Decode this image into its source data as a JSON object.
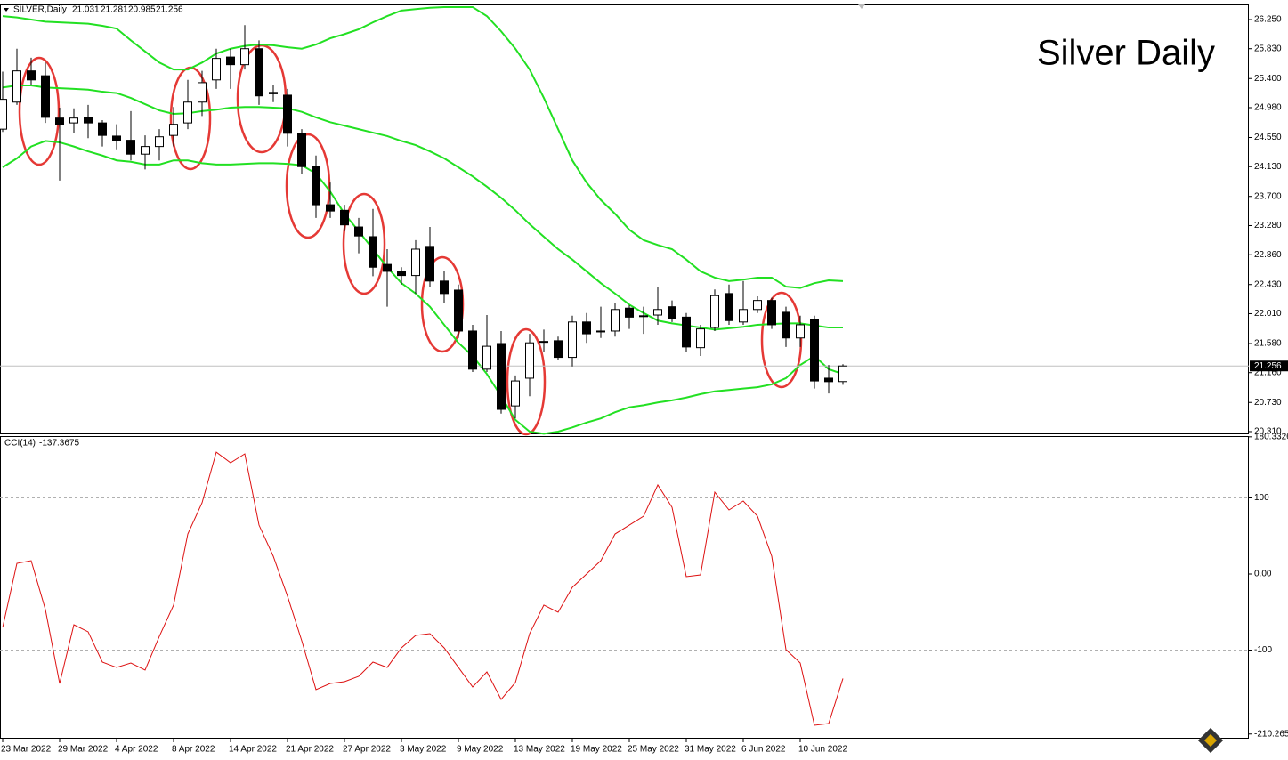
{
  "chart_data": [
    {
      "type": "candlestick",
      "title": "Silver Daily",
      "header": "SILVER,Daily",
      "categories": [
        "23 Mar 2022",
        null,
        null,
        null,
        "29 Mar 2022",
        null,
        null,
        null,
        "4 Apr 2022",
        null,
        null,
        null,
        "8 Apr 2022",
        null,
        null,
        null,
        "14 Apr 2022",
        null,
        null,
        null,
        "21 Apr 2022",
        null,
        null,
        null,
        "27 Apr 2022",
        null,
        null,
        null,
        "3 May 2022",
        null,
        null,
        null,
        "9 May 2022",
        null,
        null,
        null,
        "13 May 2022",
        null,
        null,
        null,
        "19 May 2022",
        null,
        null,
        null,
        "25 May 2022",
        null,
        null,
        null,
        "31 May 2022",
        null,
        null,
        null,
        "6 Jun 2022",
        null,
        null,
        null,
        "10 Jun 2022",
        null,
        null,
        null
      ],
      "open": [
        24.67,
        25.06,
        25.51,
        25.44,
        24.83,
        24.76,
        24.84,
        24.76,
        24.57,
        24.51,
        24.31,
        24.42,
        24.58,
        24.76,
        25.06,
        25.38,
        25.71,
        25.6,
        25.83,
        25.2,
        25.16,
        24.61,
        24.13,
        23.58,
        23.5,
        23.26,
        23.12,
        22.72,
        22.62,
        22.56,
        22.98,
        22.48,
        22.35,
        21.76,
        21.21,
        21.58,
        20.68,
        21.08,
        21.6,
        21.62,
        21.38,
        21.89,
        21.75,
        21.76,
        22.09,
        21.97,
        21.99,
        22.11,
        21.96,
        21.52,
        21.81,
        22.3,
        21.89,
        22.07,
        22.2,
        22.03,
        21.66,
        21.93,
        21.08,
        21.031
      ],
      "high": [
        25.5,
        25.83,
        25.7,
        25.63,
        24.98,
        24.97,
        25.02,
        24.8,
        24.74,
        24.93,
        24.58,
        24.67,
        24.99,
        25.38,
        25.51,
        25.83,
        25.83,
        26.17,
        25.95,
        25.31,
        25.25,
        24.67,
        24.29,
        23.9,
        23.58,
        23.39,
        23.52,
        22.94,
        22.68,
        23.07,
        23.26,
        22.62,
        22.43,
        21.85,
        21.99,
        21.76,
        21.12,
        21.72,
        21.78,
        21.68,
        21.98,
        22.02,
        22.11,
        22.17,
        22.13,
        22.11,
        22.4,
        22.2,
        22.02,
        21.85,
        22.36,
        22.43,
        22.48,
        22.26,
        22.24,
        22.11,
        21.98,
        21.98,
        21.27,
        21.281
      ],
      "low": [
        24.63,
        25.02,
        25.31,
        24.76,
        23.93,
        24.61,
        24.54,
        24.42,
        24.38,
        24.22,
        24.09,
        24.22,
        24.42,
        24.67,
        24.86,
        25.25,
        25.25,
        25.53,
        25.02,
        25.06,
        24.42,
        24.03,
        23.39,
        23.39,
        23.2,
        22.88,
        22.55,
        22.11,
        22.43,
        22.3,
        22.4,
        22.17,
        21.66,
        21.17,
        21.17,
        20.57,
        20.5,
        20.82,
        21.46,
        21.34,
        21.25,
        21.59,
        21.66,
        21.68,
        21.79,
        21.72,
        21.85,
        21.89,
        21.46,
        21.4,
        21.76,
        21.85,
        21.85,
        22.02,
        21.79,
        21.53,
        21.53,
        20.93,
        20.86,
        20.985
      ],
      "close": [
        25.1,
        25.51,
        25.38,
        24.84,
        24.74,
        24.83,
        24.76,
        24.58,
        24.51,
        24.31,
        24.42,
        24.56,
        24.74,
        25.06,
        25.34,
        25.69,
        25.6,
        25.83,
        25.15,
        25.18,
        24.61,
        24.13,
        23.58,
        23.49,
        23.29,
        23.13,
        22.68,
        22.62,
        22.56,
        22.94,
        22.48,
        22.3,
        21.76,
        21.21,
        21.54,
        20.63,
        21.04,
        21.59,
        21.61,
        21.38,
        21.89,
        21.72,
        21.76,
        22.07,
        21.96,
        21.98,
        22.07,
        21.94,
        21.53,
        21.79,
        22.27,
        21.91,
        22.07,
        22.2,
        21.85,
        21.66,
        21.85,
        21.04,
        21.03,
        21.256
      ],
      "up_color": "#ffffff",
      "down_color": "#000000",
      "lines": [
        {
          "color": "#22e022",
          "values": [
            26.3,
            26.28,
            26.25,
            26.22,
            26.21,
            26.2,
            26.19,
            26.16,
            26.12,
            25.95,
            25.79,
            25.63,
            25.53,
            25.53,
            25.63,
            25.76,
            25.83,
            25.87,
            25.89,
            25.88,
            25.85,
            25.83,
            25.89,
            25.98,
            26.04,
            26.11,
            26.21,
            26.3,
            26.38,
            26.4,
            26.42,
            26.43,
            26.43,
            26.43,
            26.3,
            26.08,
            25.83,
            25.53,
            25.12,
            24.67,
            24.22,
            23.9,
            23.65,
            23.45,
            23.22,
            23.07,
            23.0,
            22.94,
            22.79,
            22.62,
            22.53,
            22.48,
            22.5,
            22.53,
            22.53,
            22.4,
            22.38,
            22.45,
            22.49,
            22.48
          ]
        },
        {
          "color": "#22e022",
          "values": [
            25.27,
            25.3,
            25.3,
            25.27,
            25.26,
            25.25,
            25.24,
            25.21,
            25.19,
            25.12,
            25.03,
            24.94,
            24.89,
            24.9,
            24.93,
            24.95,
            24.98,
            24.99,
            24.99,
            24.98,
            24.97,
            24.92,
            24.84,
            24.77,
            24.72,
            24.67,
            24.62,
            24.57,
            24.5,
            24.44,
            24.35,
            24.25,
            24.12,
            23.99,
            23.84,
            23.68,
            23.5,
            23.3,
            23.12,
            22.94,
            22.79,
            22.62,
            22.45,
            22.3,
            22.14,
            22.02,
            21.91,
            21.87,
            21.84,
            21.81,
            21.78,
            21.8,
            21.82,
            21.85,
            21.86,
            21.87,
            21.87,
            21.84,
            21.81,
            21.81
          ]
        },
        {
          "color": "#22e022",
          "values": [
            24.12,
            24.25,
            24.42,
            24.5,
            24.48,
            24.42,
            24.35,
            24.29,
            24.22,
            24.2,
            24.16,
            24.16,
            24.22,
            24.22,
            24.18,
            24.16,
            24.16,
            24.17,
            24.18,
            24.18,
            24.17,
            24.15,
            24.03,
            23.77,
            23.45,
            23.2,
            22.94,
            22.68,
            22.45,
            22.3,
            22.11,
            21.85,
            21.59,
            21.4,
            21.14,
            20.82,
            20.48,
            20.31,
            20.28,
            20.31,
            20.37,
            20.44,
            20.5,
            20.59,
            20.66,
            20.69,
            20.73,
            20.76,
            20.8,
            20.85,
            20.89,
            20.91,
            20.93,
            20.95,
            20.99,
            21.08,
            21.27,
            21.4,
            21.21,
            21.14
          ]
        }
      ],
      "ylim": [
        20.284,
        26.468
      ],
      "yticks": [
        {
          "value": 26.25,
          "label": "26.250"
        },
        {
          "value": 25.83,
          "label": "25.830"
        },
        {
          "value": 25.4,
          "label": "25.400"
        },
        {
          "value": 24.98,
          "label": "24.980"
        },
        {
          "value": 24.55,
          "label": "24.550"
        },
        {
          "value": 24.13,
          "label": "24.130"
        },
        {
          "value": 23.7,
          "label": "23.700"
        },
        {
          "value": 23.28,
          "label": "23.280"
        },
        {
          "value": 22.86,
          "label": "22.860"
        },
        {
          "value": 22.43,
          "label": "22.430"
        },
        {
          "value": 22.01,
          "label": "22.010"
        },
        {
          "value": 21.58,
          "label": "21.580"
        },
        {
          "value": 21.16,
          "label": "21.160"
        },
        {
          "value": 20.73,
          "label": "20.730"
        },
        {
          "value": 20.31,
          "label": "20.310"
        }
      ]
    },
    {
      "type": "line",
      "title": "CCI(14)",
      "color": "#dd1111",
      "values": [
        -70.2,
        14.0,
        17.5,
        -46.8,
        -143.9,
        -66.7,
        -76.0,
        -115.8,
        -122.8,
        -117.0,
        -126.3,
        -81.9,
        -40.9,
        52.6,
        93.6,
        160.2,
        146.2,
        157.9,
        64.3,
        23.4,
        -29.2,
        -87.7,
        -152.0,
        -143.9,
        -141.5,
        -134.5,
        -115.8,
        -122.8,
        -97.1,
        -80.7,
        -78.4,
        -97.1,
        -122.8,
        -148.5,
        -128.7,
        -164.9,
        -142.7,
        -78.4,
        -40.9,
        -50.3,
        -17.5,
        0,
        17.5,
        52.6,
        64.3,
        76.0,
        117.0,
        87.7,
        -3.5,
        -1.2,
        107.6,
        84.2,
        95.9,
        76.0,
        23.4,
        -99.4,
        -117.0,
        -198.8,
        -196.5,
        -137.3675
      ],
      "ylim": [
        -216.4,
        181.3
      ],
      "yticks": [
        180.3326,
        100,
        {
          "value": 0,
          "label": "0.00"
        },
        -100,
        -210.265
      ],
      "levels": [
        100,
        -100
      ]
    }
  ]
}
